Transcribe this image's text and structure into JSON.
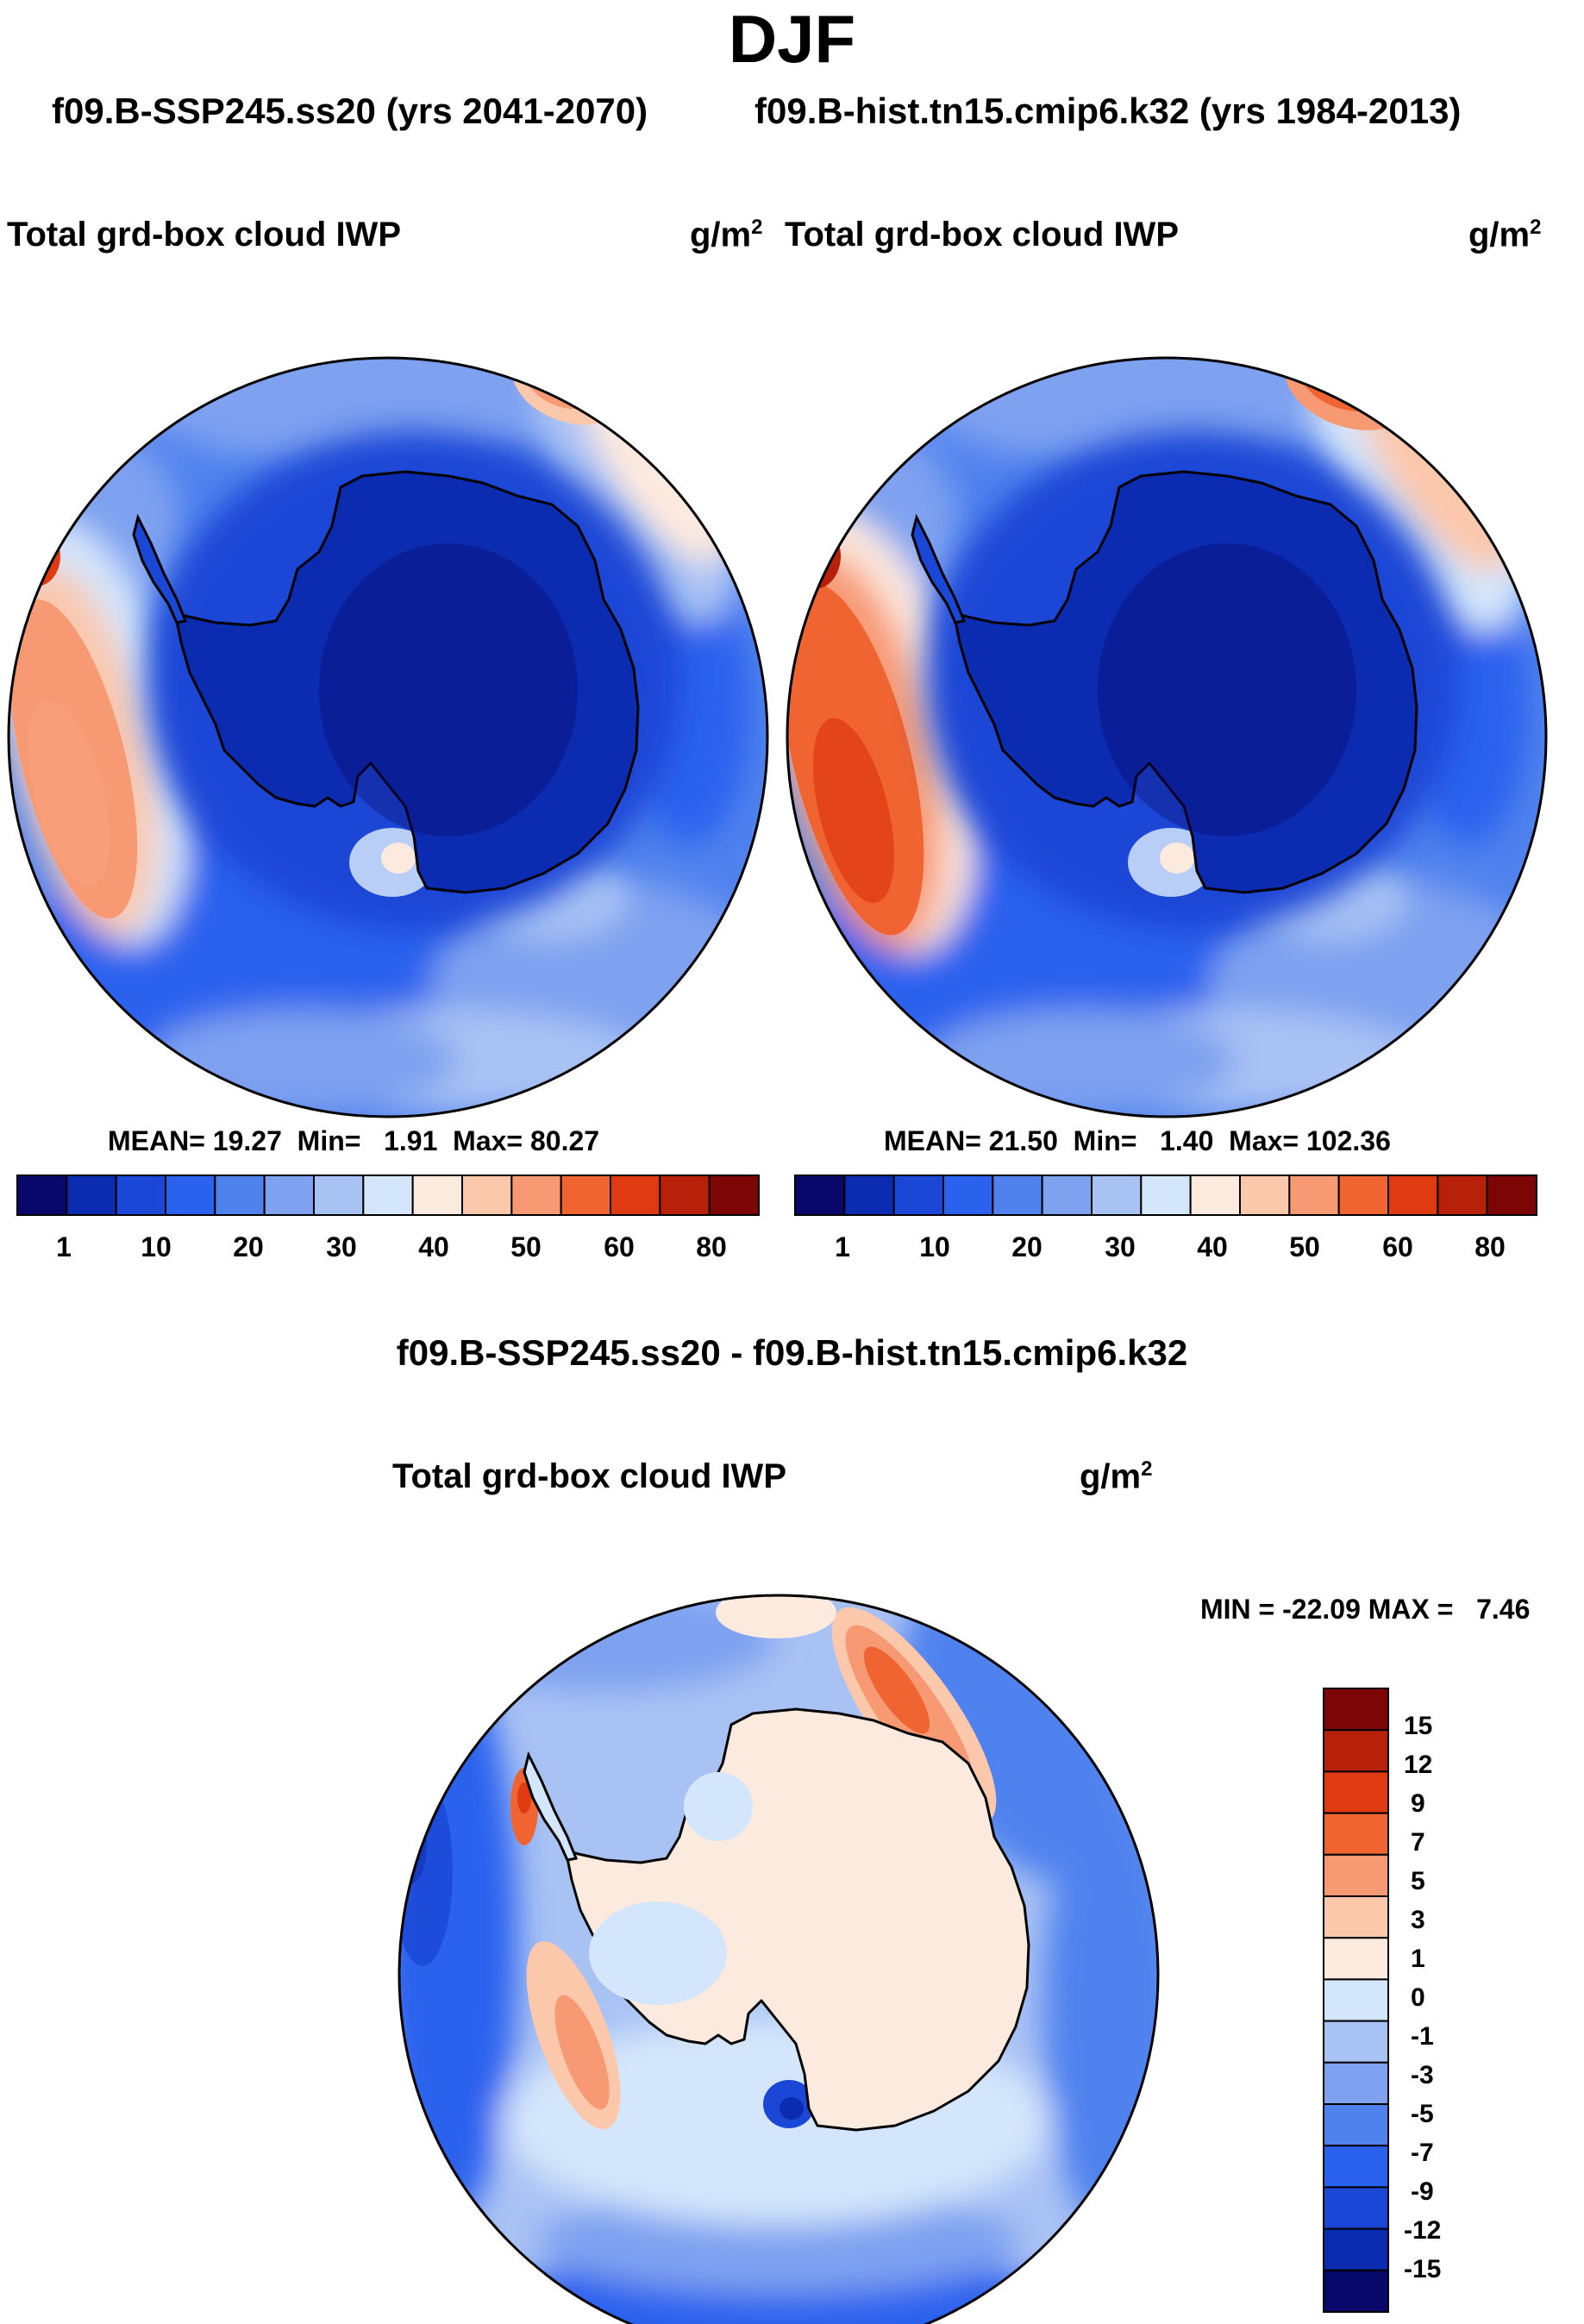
{
  "title": "DJF",
  "subtitle_left": "f09.B-SSP245.ss20 (yrs 2041-2070)",
  "subtitle_right": "f09.B-hist.tn15.cmip6.k32 (yrs 1984-2013)",
  "diff_title": "f09.B-SSP245.ss20 - f09.B-hist.tn15.cmip6.k32",
  "chart_data": [
    {
      "type": "heatmap",
      "projection": "south-polar-stereographic",
      "title": "Total grd-box cloud IWP",
      "units_base": "g/m",
      "units_exp": "2",
      "stats": {
        "mean_label": "MEAN=",
        "mean": "19.27",
        "min_label": "Min=",
        "min": "1.91",
        "max_label": "Max=",
        "max": "80.27"
      },
      "colorbar_ticks": [
        "1",
        "10",
        "20",
        "30",
        "40",
        "50",
        "60",
        "80"
      ],
      "colors": [
        "#08086b",
        "#0b2bb0",
        "#1a47d6",
        "#2a62ee",
        "#5082ee",
        "#7ea1f0",
        "#a9c2f4",
        "#d4e6fb",
        "#fdeade",
        "#fbc8ac",
        "#f79a74",
        "#f06432",
        "#e03a12",
        "#b7210a",
        "#7d0505"
      ]
    },
    {
      "type": "heatmap",
      "projection": "south-polar-stereographic",
      "title": "Total grd-box cloud IWP",
      "units_base": "g/m",
      "units_exp": "2",
      "stats": {
        "mean_label": "MEAN=",
        "mean": "21.50",
        "min_label": "Min=",
        "min": "1.40",
        "max_label": "Max=",
        "max": "102.36"
      },
      "colorbar_ticks": [
        "1",
        "10",
        "20",
        "30",
        "40",
        "50",
        "60",
        "80"
      ],
      "colors": [
        "#08086b",
        "#0b2bb0",
        "#1a47d6",
        "#2a62ee",
        "#5082ee",
        "#7ea1f0",
        "#a9c2f4",
        "#d4e6fb",
        "#fdeade",
        "#fbc8ac",
        "#f79a74",
        "#f06432",
        "#e03a12",
        "#b7210a",
        "#7d0505"
      ]
    },
    {
      "type": "heatmap",
      "projection": "south-polar-stereographic",
      "title": "Total grd-box cloud IWP",
      "units_base": "g/m",
      "units_exp": "2",
      "stats": {
        "min_label": "MIN =",
        "min": "-22.09",
        "max_label": "MAX =",
        "max": "7.46"
      },
      "colorbar_ticks": [
        "15",
        "12",
        "9",
        "7",
        "5",
        "3",
        "1",
        "0",
        "-1",
        "-3",
        "-5",
        "-7",
        "-9",
        "-12",
        "-15"
      ],
      "colors": [
        "#7d0505",
        "#b7210a",
        "#e03a12",
        "#f06432",
        "#f79a74",
        "#fbc8ac",
        "#fdeade",
        "#d4e6fb",
        "#a9c2f4",
        "#7ea1f0",
        "#5082ee",
        "#2a62ee",
        "#1a47d6",
        "#0b2bb0",
        "#08086b"
      ]
    }
  ]
}
